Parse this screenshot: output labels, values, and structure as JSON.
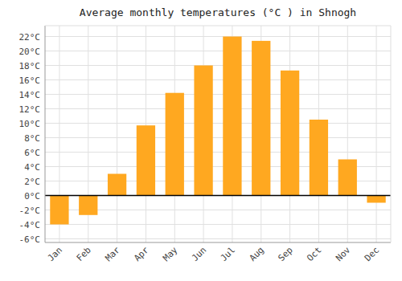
{
  "chart_data": {
    "type": "bar",
    "title": "Average monthly temperatures (°C ) in Shnogh",
    "categories": [
      "Jan",
      "Feb",
      "Mar",
      "Apr",
      "May",
      "Jun",
      "Jul",
      "Aug",
      "Sep",
      "Oct",
      "Nov",
      "Dec"
    ],
    "values": [
      -4.0,
      -2.7,
      3.0,
      9.7,
      14.2,
      18.0,
      22.0,
      21.4,
      17.3,
      10.5,
      5.0,
      -1.0
    ],
    "color": "#FFA820",
    "ylim": [
      -6.5,
      23.5
    ],
    "yticks": [
      {
        "value": -6,
        "label": "-6°C"
      },
      {
        "value": -4,
        "label": "-4°C"
      },
      {
        "value": -2,
        "label": "-2°C"
      },
      {
        "value": 0,
        "label": "0°C"
      },
      {
        "value": 2,
        "label": "2°C"
      },
      {
        "value": 4,
        "label": "4°C"
      },
      {
        "value": 6,
        "label": "6°C"
      },
      {
        "value": 8,
        "label": "8°C"
      },
      {
        "value": 10,
        "label": "10°C"
      },
      {
        "value": 12,
        "label": "12°C"
      },
      {
        "value": 14,
        "label": "14°C"
      },
      {
        "value": 16,
        "label": "16°C"
      },
      {
        "value": 18,
        "label": "18°C"
      },
      {
        "value": 20,
        "label": "20°C"
      },
      {
        "value": 22,
        "label": "22°C"
      }
    ],
    "grid": true
  }
}
